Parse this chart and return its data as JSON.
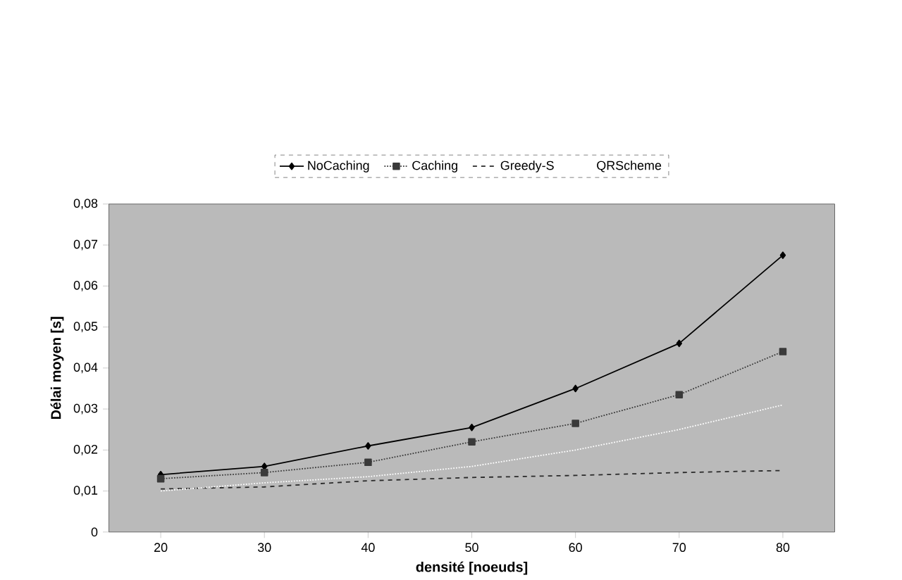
{
  "chart_data": {
    "type": "line",
    "xlabel": "densité [noeuds]",
    "ylabel": "Délai moyen [s]",
    "categories": [
      "20",
      "30",
      "40",
      "50",
      "60",
      "70",
      "80"
    ],
    "series": [
      {
        "name": "NoCaching",
        "color": "#000000",
        "marker": "diamond",
        "line_style": "solid",
        "values": [
          0.014,
          0.016,
          0.021,
          0.0255,
          0.035,
          0.046,
          0.0675
        ]
      },
      {
        "name": "Caching",
        "color": "#3a3a3a",
        "marker": "square",
        "line_style": "dotted",
        "values": [
          0.013,
          0.0145,
          0.017,
          0.022,
          0.0265,
          0.0335,
          0.044
        ]
      },
      {
        "name": "Greedy-S",
        "color": "#2a2a2a",
        "marker": "none",
        "line_style": "dashed",
        "values": [
          0.0105,
          0.011,
          0.0125,
          0.0133,
          0.0138,
          0.0145,
          0.015
        ]
      },
      {
        "name": "QRScheme",
        "color": "#ffffff",
        "marker": "none",
        "line_style": "dotted",
        "values": [
          0.01,
          0.012,
          0.0135,
          0.016,
          0.02,
          0.025,
          0.031
        ]
      }
    ],
    "ylim": [
      0,
      0.08
    ],
    "yticks": [
      0,
      {
        "value": 0.01,
        "label": "0,01"
      },
      {
        "value": 0.02,
        "label": "0,02"
      },
      {
        "value": 0.03,
        "label": "0,03"
      },
      {
        "value": 0.04,
        "label": "0,04"
      },
      {
        "value": 0.05,
        "label": "0,05"
      },
      {
        "value": 0.06,
        "label": "0,06"
      },
      {
        "value": 0.07,
        "label": "0,07"
      },
      {
        "value": 0.08,
        "label": "0,08"
      }
    ],
    "legend": "top",
    "grid": false
  }
}
